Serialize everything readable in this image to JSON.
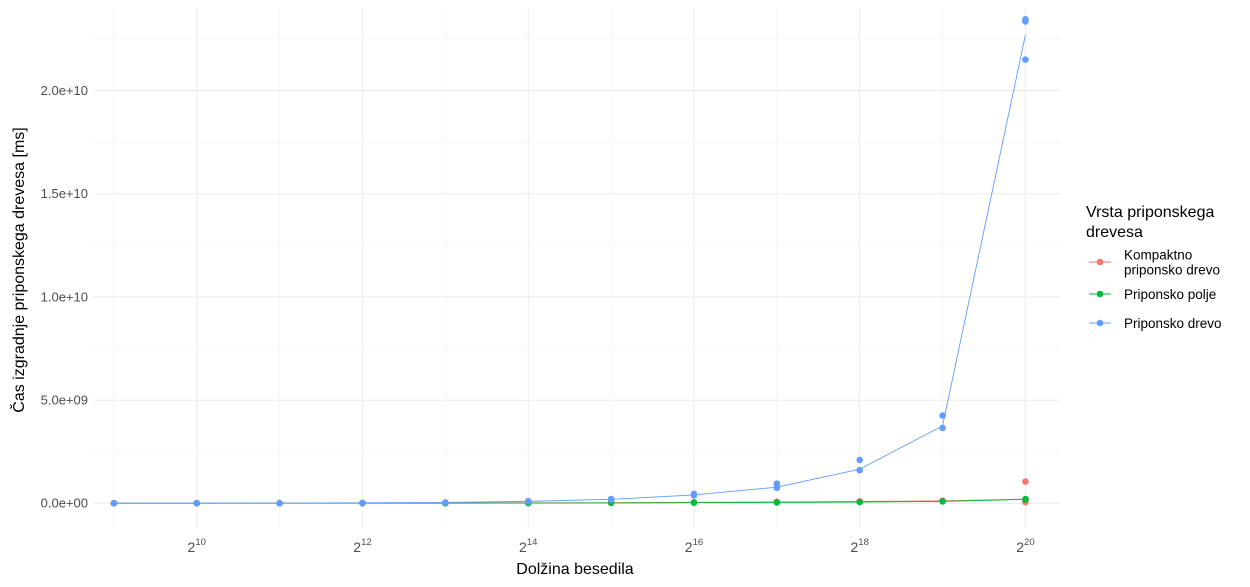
{
  "chart_data": {
    "type": "scatter",
    "xlabel": "Dolžina besedila",
    "ylabel": "Čas izgradnje priponskega drevesa [ms]",
    "x_scale": "log2",
    "x_tick_base": "2",
    "x_ticks": [
      {
        "value": 1024,
        "exp": "10"
      },
      {
        "value": 4096,
        "exp": "12"
      },
      {
        "value": 16384,
        "exp": "14"
      },
      {
        "value": 65536,
        "exp": "16"
      },
      {
        "value": 262144,
        "exp": "18"
      },
      {
        "value": 1048576,
        "exp": "20"
      }
    ],
    "y_ticks": [
      {
        "value": 0,
        "label": "0.0e+00"
      },
      {
        "value": 5000000000,
        "label": "5.0e+09"
      },
      {
        "value": 10000000000,
        "label": "1.0e+10"
      },
      {
        "value": 15000000000,
        "label": "1.5e+10"
      },
      {
        "value": 20000000000,
        "label": "2.0e+10"
      }
    ],
    "xlim": [
      430,
      1400000
    ],
    "ylim": [
      -1200000000,
      24000000000
    ],
    "grid": true,
    "legend": {
      "title_lines": [
        "Vrsta priponskega",
        "drevesa"
      ],
      "position": "right"
    },
    "series": [
      {
        "name_lines": [
          "Kompaktno",
          "priponsko drevo"
        ],
        "color": "#F8766D",
        "x": [
          512,
          512,
          1024,
          1024,
          2048,
          2048,
          4096,
          4096,
          8192,
          8192,
          16384,
          16384,
          32768,
          32768,
          65536,
          65536,
          131072,
          131072,
          262144,
          262144,
          524288,
          524288,
          1048576,
          1048576,
          1048576
        ],
        "y": [
          1000000,
          1500000,
          3000000,
          3500000,
          5000000,
          6000000,
          9000000,
          10000000,
          12000000,
          13000000,
          18000000,
          20000000,
          25000000,
          28000000,
          40000000,
          45000000,
          60000000,
          70000000,
          80000000,
          90000000,
          110000000,
          120000000,
          1050000000,
          150000000,
          50000000
        ],
        "line": [
          [
            512,
            1200000
          ],
          [
            1024,
            3200000
          ],
          [
            2048,
            5500000
          ],
          [
            4096,
            9500000
          ],
          [
            8192,
            12500000
          ],
          [
            16384,
            19000000
          ],
          [
            32768,
            26000000
          ],
          [
            65536,
            42000000
          ],
          [
            131072,
            65000000
          ],
          [
            262144,
            85000000
          ],
          [
            524288,
            115000000
          ],
          [
            1048576,
            200000000
          ]
        ]
      },
      {
        "name_lines": [
          "Priponsko polje"
        ],
        "color": "#00BA38",
        "x": [
          512,
          1024,
          2048,
          4096,
          8192,
          16384,
          32768,
          65536,
          131072,
          262144,
          524288,
          1048576,
          1048576
        ],
        "y": [
          500000,
          1000000,
          2000000,
          3000000,
          4000000,
          8000000,
          15000000,
          25000000,
          40000000,
          60000000,
          90000000,
          180000000,
          200000000
        ],
        "line": [
          [
            512,
            500000
          ],
          [
            1024,
            1000000
          ],
          [
            2048,
            2000000
          ],
          [
            4096,
            3000000
          ],
          [
            8192,
            4000000
          ],
          [
            16384,
            8000000
          ],
          [
            32768,
            15000000
          ],
          [
            65536,
            25000000
          ],
          [
            131072,
            40000000
          ],
          [
            262144,
            60000000
          ],
          [
            524288,
            90000000
          ],
          [
            1048576,
            190000000
          ]
        ]
      },
      {
        "name_lines": [
          "Priponsko drevo"
        ],
        "color": "#619CFF",
        "x": [
          512,
          1024,
          2048,
          4096,
          8192,
          16384,
          16384,
          32768,
          32768,
          65536,
          65536,
          131072,
          131072,
          262144,
          262144,
          524288,
          524288,
          1048576,
          1048576,
          1048576
        ],
        "y": [
          2000000,
          5000000,
          10000000,
          20000000,
          40000000,
          80000000,
          100000000,
          180000000,
          200000000,
          380000000,
          450000000,
          750000000,
          950000000,
          1600000000,
          2100000000,
          3650000000,
          4250000000,
          23450000000,
          23350000000,
          21500000000
        ],
        "line": [
          [
            512,
            2000000
          ],
          [
            1024,
            5000000
          ],
          [
            2048,
            10000000
          ],
          [
            4096,
            20000000
          ],
          [
            8192,
            40000000
          ],
          [
            16384,
            90000000
          ],
          [
            32768,
            190000000
          ],
          [
            65536,
            400000000
          ],
          [
            131072,
            780000000
          ],
          [
            262144,
            1650000000
          ],
          [
            524288,
            3750000000
          ],
          [
            1048576,
            22700000000
          ]
        ]
      }
    ]
  }
}
